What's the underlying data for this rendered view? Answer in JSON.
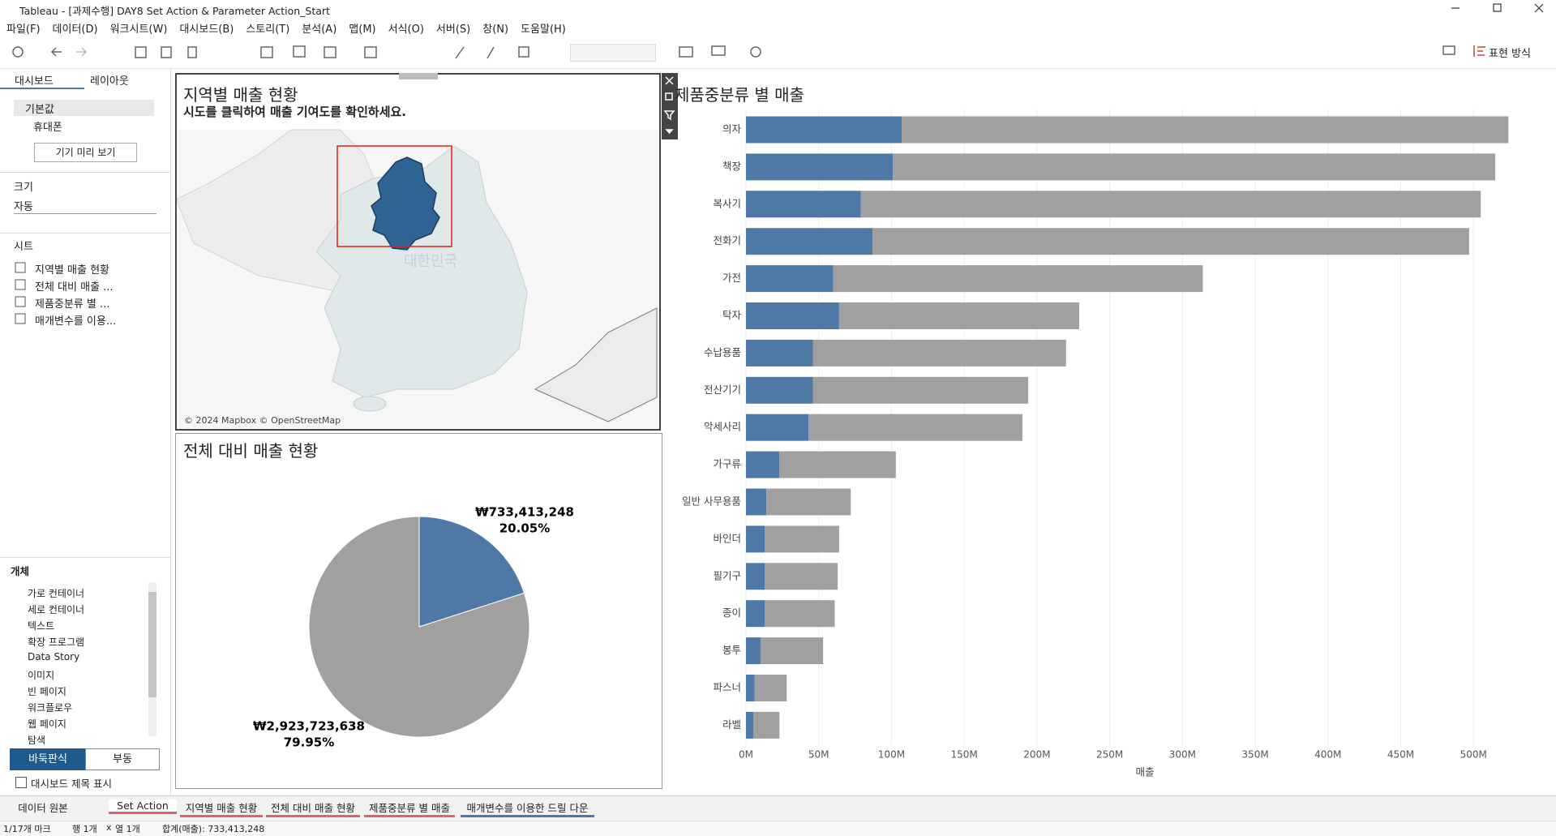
{
  "chart_data": [
    {
      "type": "pie",
      "title": "전체 대비 매출 현황",
      "values": [
        733413248,
        2923723638
      ],
      "value_labels": [
        "₩733,413,248",
        "₩2,923,723,638"
      ],
      "percent_labels": [
        "20.05%",
        "79.95%"
      ],
      "colors": [
        "#4e79a7",
        "#a0a0a0"
      ]
    },
    {
      "type": "bar",
      "orientation": "horizontal",
      "stacked": true,
      "title": "제품중분류 별 매출",
      "x_label": "매출",
      "categories": [
        "의자",
        "책장",
        "복사기",
        "전화기",
        "가전",
        "탁자",
        "수납용품",
        "전산기기",
        "악세사리",
        "가구류",
        "일반 사무용품",
        "바인더",
        "필기구",
        "종이",
        "봉투",
        "파스너",
        "라벨"
      ],
      "series": [
        {
          "color": "#4e79a7",
          "values": [
            107,
            101,
            79,
            87,
            60,
            64,
            46,
            46,
            43,
            23,
            14,
            13,
            13,
            13,
            10,
            6,
            5
          ]
        },
        {
          "color": "#a0a0a0",
          "values": [
            417,
            414,
            426,
            410,
            254,
            165,
            174,
            148,
            147,
            80,
            58,
            51,
            50,
            48,
            43,
            22,
            18
          ]
        }
      ],
      "xlim": [
        0,
        540
      ],
      "xticks": [
        {
          "value": 0,
          "label": "0M"
        },
        {
          "value": 50,
          "label": "50M"
        },
        {
          "value": 100,
          "label": "100M"
        },
        {
          "value": 150,
          "label": "150M"
        },
        {
          "value": 200,
          "label": "200M"
        },
        {
          "value": 250,
          "label": "250M"
        },
        {
          "value": 300,
          "label": "300M"
        },
        {
          "value": 350,
          "label": "350M"
        },
        {
          "value": 400,
          "label": "400M"
        },
        {
          "value": 450,
          "label": "450M"
        },
        {
          "value": 500,
          "label": "500M"
        }
      ],
      "grid": true
    }
  ],
  "window": {
    "title": "Tableau - [과제수행] DAY8 Set Action & Parameter Action_Start"
  },
  "menu": [
    "파일(F)",
    "데이터(D)",
    "워크시트(W)",
    "대시보드(B)",
    "스토리(T)",
    "분석(A)",
    "맵(M)",
    "서식(O)",
    "서버(S)",
    "창(N)",
    "도움말(H)"
  ],
  "toolbar": {
    "show_me": "표현 방식"
  },
  "left_panel": {
    "tabs": [
      "대시보드",
      "레이아웃"
    ],
    "devices": [
      "기본값",
      "휴대폰"
    ],
    "preview_button": "기기 미리 보기",
    "size_label": "크기",
    "size_value": "자동",
    "sheets_label": "시트",
    "sheets": [
      "지역별 매출 현황",
      "전체 대비 매출 ...",
      "제품중분류 별 ...",
      "매개변수를 이용..."
    ],
    "objects_label": "개체",
    "objects": [
      "가로 컨테이너",
      "세로 컨테이너",
      "텍스트",
      "확장 프로그램",
      "Data Story",
      "이미지",
      "빈 페이지",
      "워크플로우",
      "웹 페이지",
      "탐색"
    ],
    "layout_buttons": [
      "바둑판식",
      "부동"
    ],
    "show_title": "대시보드 제목 표시"
  },
  "map": {
    "title": "지역별 매출 현황",
    "subtitle": "시도를 클릭하여 매출 기여도를 확인하세요.",
    "country_label": "대한민국",
    "attribution": "© 2024 Mapbox © OpenStreetMap"
  },
  "tabs": [
    "데이터 원본",
    "Set Action",
    "지역별 매출 현황",
    "전체 대비 매출 현황",
    "제품중분류 별 매출",
    "매개변수를 이용한 드릴 다운"
  ],
  "status": [
    "1/17개 마크",
    "행 1개",
    "x",
    "열 1개",
    "합계(매출): 733,413,248"
  ]
}
